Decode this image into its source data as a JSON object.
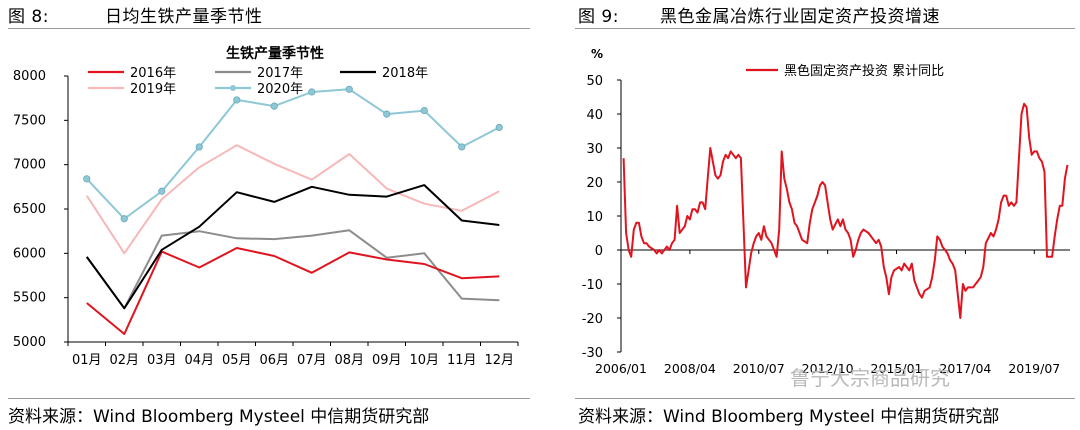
{
  "panels": {
    "left": {
      "figure_label": "图 8:",
      "title": "日均生铁产量季节性",
      "source": "资料来源：Wind Bloomberg Mysteel 中信期货研究部"
    },
    "right": {
      "figure_label": "图 9:",
      "title": "黑色金属冶炼行业固定资产投资增速",
      "source": "资料来源：Wind Bloomberg Mysteel 中信期货研究部"
    }
  },
  "watermark": "鲁宁大宗商品研究",
  "colors": {
    "s2016": "#e0141e",
    "s2017": "#8c8c8c",
    "s2018": "#000000",
    "s2019": "#f6b8b8",
    "s2020": "#8ec7d6",
    "fai": "#e0141e"
  },
  "chart_data": [
    {
      "type": "line",
      "title": "生铁产量季节性",
      "categories": [
        "01月",
        "02月",
        "03月",
        "04月",
        "05月",
        "06月",
        "07月",
        "08月",
        "09月",
        "10月",
        "11月",
        "12月"
      ],
      "ylim": [
        5000,
        8000
      ],
      "yticks": [
        5000,
        5500,
        6000,
        6500,
        7000,
        7500,
        8000
      ],
      "grid": false,
      "legend_position": "top",
      "series": [
        {
          "name": "2016年",
          "color": "#e0141e",
          "values": [
            5440,
            5090,
            6020,
            5840,
            6060,
            5970,
            5780,
            6010,
            5930,
            5880,
            5720,
            5740
          ]
        },
        {
          "name": "2017年",
          "color": "#8c8c8c",
          "values": [
            5960,
            5380,
            6200,
            6250,
            6170,
            6160,
            6200,
            6260,
            5950,
            6000,
            5490,
            5470
          ]
        },
        {
          "name": "2018年",
          "color": "#000000",
          "values": [
            5960,
            5380,
            6040,
            6300,
            6690,
            6580,
            6750,
            6660,
            6640,
            6770,
            6370,
            6320
          ]
        },
        {
          "name": "2019年",
          "color": "#f6b8b8",
          "values": [
            6650,
            6000,
            6610,
            6970,
            7220,
            7010,
            6830,
            7120,
            6730,
            6560,
            6480,
            6700
          ]
        },
        {
          "name": "2020年",
          "color": "#8ec7d6",
          "marker": true,
          "values": [
            6840,
            6390,
            6700,
            7200,
            7730,
            7660,
            7820,
            7850,
            7570,
            7610,
            7200,
            7420
          ]
        }
      ]
    },
    {
      "type": "line",
      "unit": "%",
      "ylim": [
        -30,
        50
      ],
      "yticks": [
        -30,
        -20,
        -10,
        0,
        10,
        20,
        30,
        40,
        50
      ],
      "xticks": [
        "2006/01",
        "2008/04",
        "2010/07",
        "2012/10",
        "2015/01",
        "2017/04",
        "2019/07"
      ],
      "grid": false,
      "legend_position": "top",
      "series": [
        {
          "name": "黑色固定资产投资 累计同比",
          "color": "#e0141e",
          "points": [
            [
              "2006/02",
              27
            ],
            [
              "2006/03",
              5
            ],
            [
              "2006/04",
              0
            ],
            [
              "2006/05",
              -2
            ],
            [
              "2006/06",
              6
            ],
            [
              "2006/07",
              8
            ],
            [
              "2006/08",
              8
            ],
            [
              "2006/09",
              4
            ],
            [
              "2006/10",
              2
            ],
            [
              "2006/11",
              2
            ],
            [
              "2006/12",
              1
            ],
            [
              "2007/02",
              0
            ],
            [
              "2007/03",
              -1
            ],
            [
              "2007/04",
              0
            ],
            [
              "2007/05",
              -1
            ],
            [
              "2007/06",
              0
            ],
            [
              "2007/07",
              1
            ],
            [
              "2007/08",
              0
            ],
            [
              "2007/09",
              2
            ],
            [
              "2007/10",
              3
            ],
            [
              "2007/11",
              13
            ],
            [
              "2007/12",
              5
            ],
            [
              "2008/02",
              7
            ],
            [
              "2008/03",
              10
            ],
            [
              "2008/04",
              9
            ],
            [
              "2008/05",
              12
            ],
            [
              "2008/06",
              12
            ],
            [
              "2008/07",
              11
            ],
            [
              "2008/08",
              14
            ],
            [
              "2008/09",
              14
            ],
            [
              "2008/10",
              12
            ],
            [
              "2008/11",
              21
            ],
            [
              "2008/12",
              30
            ],
            [
              "2009/02",
              22
            ],
            [
              "2009/03",
              21
            ],
            [
              "2009/04",
              22
            ],
            [
              "2009/05",
              26
            ],
            [
              "2009/06",
              28
            ],
            [
              "2009/07",
              27
            ],
            [
              "2009/08",
              29
            ],
            [
              "2009/09",
              28
            ],
            [
              "2009/10",
              27
            ],
            [
              "2009/11",
              28
            ],
            [
              "2009/12",
              27
            ],
            [
              "2010/02",
              -11
            ],
            [
              "2010/03",
              -6
            ],
            [
              "2010/04",
              -1
            ],
            [
              "2010/05",
              2
            ],
            [
              "2010/06",
              4
            ],
            [
              "2010/07",
              5
            ],
            [
              "2010/08",
              3
            ],
            [
              "2010/09",
              7
            ],
            [
              "2010/10",
              4
            ],
            [
              "2010/11",
              3
            ],
            [
              "2010/12",
              2
            ],
            [
              "2011/02",
              -2
            ],
            [
              "2011/03",
              6
            ],
            [
              "2011/04",
              29
            ],
            [
              "2011/05",
              21
            ],
            [
              "2011/06",
              18
            ],
            [
              "2011/07",
              14
            ],
            [
              "2011/08",
              12
            ],
            [
              "2011/09",
              8
            ],
            [
              "2011/10",
              7
            ],
            [
              "2011/11",
              5
            ],
            [
              "2011/12",
              3
            ],
            [
              "2012/02",
              2
            ],
            [
              "2012/03",
              8
            ],
            [
              "2012/04",
              12
            ],
            [
              "2012/05",
              14
            ],
            [
              "2012/06",
              16
            ],
            [
              "2012/07",
              19
            ],
            [
              "2012/08",
              20
            ],
            [
              "2012/09",
              19
            ],
            [
              "2012/10",
              14
            ],
            [
              "2012/11",
              9
            ],
            [
              "2012/12",
              6
            ],
            [
              "2013/02",
              9
            ],
            [
              "2013/03",
              7
            ],
            [
              "2013/04",
              9
            ],
            [
              "2013/05",
              6
            ],
            [
              "2013/06",
              5
            ],
            [
              "2013/07",
              3
            ],
            [
              "2013/08",
              -2
            ],
            [
              "2013/09",
              0
            ],
            [
              "2013/10",
              3
            ],
            [
              "2013/11",
              5
            ],
            [
              "2013/12",
              6
            ],
            [
              "2014/02",
              5
            ],
            [
              "2014/03",
              4
            ],
            [
              "2014/04",
              3
            ],
            [
              "2014/05",
              2
            ],
            [
              "2014/06",
              3
            ],
            [
              "2014/07",
              1
            ],
            [
              "2014/08",
              -5
            ],
            [
              "2014/09",
              -8
            ],
            [
              "2014/10",
              -13
            ],
            [
              "2014/11",
              -8
            ],
            [
              "2014/12",
              -6
            ],
            [
              "2015/02",
              -5
            ],
            [
              "2015/03",
              -6
            ],
            [
              "2015/04",
              -4
            ],
            [
              "2015/05",
              -5
            ],
            [
              "2015/06",
              -6
            ],
            [
              "2015/07",
              -4
            ],
            [
              "2015/08",
              -9
            ],
            [
              "2015/09",
              -11
            ],
            [
              "2015/10",
              -13
            ],
            [
              "2015/11",
              -14
            ],
            [
              "2015/12",
              -12
            ],
            [
              "2016/02",
              -11
            ],
            [
              "2016/03",
              -8
            ],
            [
              "2016/04",
              -3
            ],
            [
              "2016/05",
              4
            ],
            [
              "2016/06",
              3
            ],
            [
              "2016/07",
              1
            ],
            [
              "2016/08",
              0
            ],
            [
              "2016/09",
              -1
            ],
            [
              "2016/10",
              -3
            ],
            [
              "2016/11",
              -4
            ],
            [
              "2016/12",
              -6
            ],
            [
              "2017/02",
              -20
            ],
            [
              "2017/03",
              -10
            ],
            [
              "2017/04",
              -12
            ],
            [
              "2017/05",
              -11
            ],
            [
              "2017/06",
              -11
            ],
            [
              "2017/07",
              -11
            ],
            [
              "2017/08",
              -10
            ],
            [
              "2017/09",
              -9
            ],
            [
              "2017/10",
              -8
            ],
            [
              "2017/11",
              -5
            ],
            [
              "2017/12",
              2
            ],
            [
              "2018/02",
              5
            ],
            [
              "2018/03",
              4
            ],
            [
              "2018/04",
              6
            ],
            [
              "2018/05",
              9
            ],
            [
              "2018/06",
              14
            ],
            [
              "2018/07",
              16
            ],
            [
              "2018/08",
              16
            ],
            [
              "2018/09",
              13
            ],
            [
              "2018/10",
              14
            ],
            [
              "2018/11",
              13
            ],
            [
              "2018/12",
              14
            ],
            [
              "2019/02",
              40
            ],
            [
              "2019/03",
              43
            ],
            [
              "2019/04",
              42
            ],
            [
              "2019/05",
              33
            ],
            [
              "2019/06",
              28
            ],
            [
              "2019/07",
              29
            ],
            [
              "2019/08",
              29
            ],
            [
              "2019/09",
              27
            ],
            [
              "2019/10",
              26
            ],
            [
              "2019/11",
              23
            ],
            [
              "2019/12",
              -2
            ],
            [
              "2020/02",
              -2
            ],
            [
              "2020/03",
              4
            ],
            [
              "2020/04",
              9
            ],
            [
              "2020/05",
              13
            ],
            [
              "2020/06",
              13
            ],
            [
              "2020/07",
              21
            ],
            [
              "2020/08",
              25
            ]
          ]
        }
      ]
    }
  ]
}
